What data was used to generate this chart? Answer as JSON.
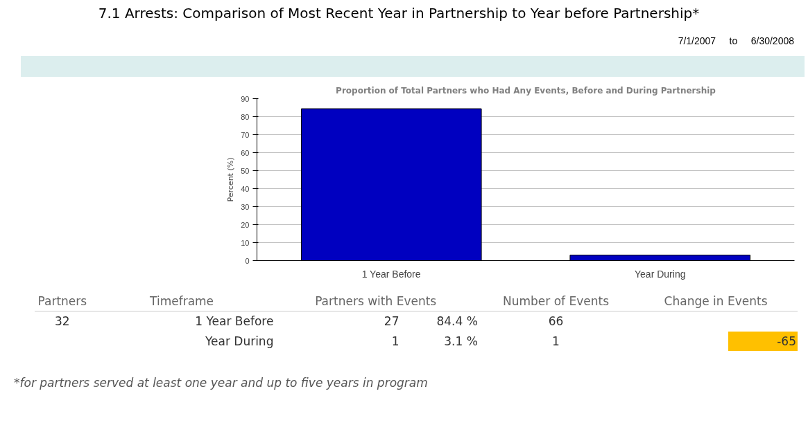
{
  "chart_data": {
    "type": "bar",
    "title": "7.1 Arrests: Comparison of Most Recent Year in Partnership to Year before Partnership*",
    "subtitle": "Proportion of Total Partners who Had Any Events, Before and During Partnership",
    "ylabel": "Percent (%)",
    "categories": [
      "1 Year Before",
      "Year During"
    ],
    "values": [
      84.4,
      3.1
    ],
    "value_labels": [
      "84.4 %",
      "3.1 %"
    ],
    "color": "#0000c0",
    "ylim": [
      0,
      90
    ],
    "yticks": [
      0,
      10,
      20,
      30,
      40,
      50,
      60,
      70,
      80,
      90
    ],
    "grid": "y",
    "annotations": [
      "7/1/2007",
      "to",
      "6/30/2008",
      "Partners",
      "Timeframe",
      "Partners with Events",
      "Number of Events",
      "Change in Events",
      "32",
      "1 Year Before",
      "27",
      "66",
      "Year During",
      "1",
      "1",
      "-65",
      "*for partners served at least one year and up to five years in program"
    ]
  }
}
